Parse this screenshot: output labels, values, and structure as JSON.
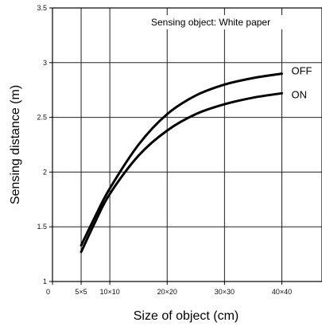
{
  "chart_data": {
    "type": "line",
    "xlabel": "Size of object  (cm)",
    "ylabel": "Sensing distance  (m)",
    "annotation": "Sensing object: White paper",
    "x_ticks": [
      {
        "value": 0,
        "label": "0"
      },
      {
        "value": 5,
        "label": "5×5"
      },
      {
        "value": 10,
        "label": "10×10"
      },
      {
        "value": 20,
        "label": "20×20"
      },
      {
        "value": 30,
        "label": "30×30"
      },
      {
        "value": 40,
        "label": "40×40"
      }
    ],
    "y_ticks": [
      {
        "value": 1,
        "label": "1"
      },
      {
        "value": 1.5,
        "label": "1.5"
      },
      {
        "value": 2,
        "label": "2"
      },
      {
        "value": 2.5,
        "label": "2.5"
      },
      {
        "value": 3,
        "label": "3"
      },
      {
        "value": 3.5,
        "label": "3.5"
      }
    ],
    "xlim": [
      0,
      47
    ],
    "ylim": [
      1,
      3.5
    ],
    "grid": true,
    "series": [
      {
        "name": "OFF",
        "x": [
          5,
          7.5,
          10,
          15,
          20,
          25,
          30,
          35,
          40
        ],
        "y": [
          1.33,
          1.6,
          1.85,
          2.25,
          2.53,
          2.7,
          2.8,
          2.86,
          2.9
        ]
      },
      {
        "name": "ON",
        "x": [
          5,
          7.5,
          10,
          15,
          20,
          25,
          30,
          35,
          40
        ],
        "y": [
          1.27,
          1.55,
          1.8,
          2.15,
          2.38,
          2.53,
          2.62,
          2.68,
          2.72
        ]
      }
    ]
  }
}
